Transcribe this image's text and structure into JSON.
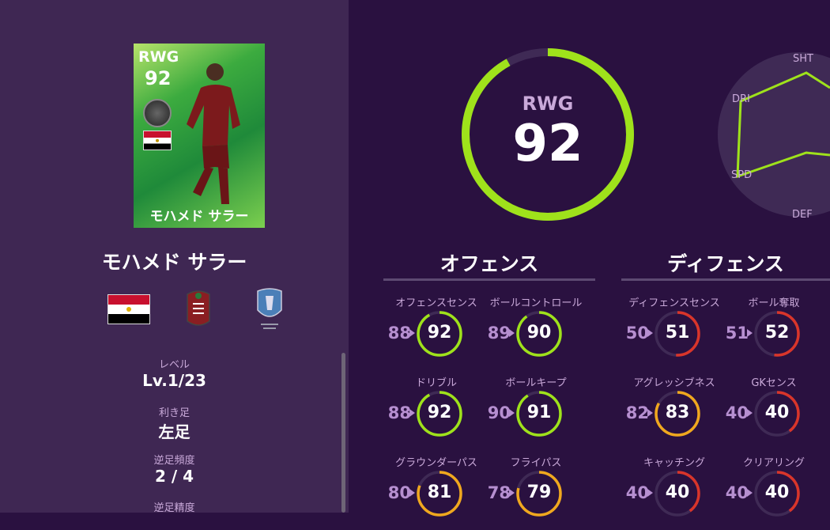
{
  "player": {
    "position": "RWG",
    "overall": 92,
    "name": "モハメド サラー",
    "card_name": "モハメド サラー"
  },
  "info": [
    {
      "label": "レベル",
      "value": "Lv.1/23"
    },
    {
      "label": "利き足",
      "value": "左足"
    },
    {
      "label": "逆足頻度",
      "value": "2 / 4"
    },
    {
      "label": "逆足精度",
      "value": ""
    }
  ],
  "radar": {
    "labels": [
      "SHT",
      "DRI",
      "SPD",
      "DEF"
    ]
  },
  "colors": {
    "high": "#9fe21b",
    "mid": "#f0a81e",
    "low": "#d9352a",
    "track": "#3f2a55"
  },
  "sections": {
    "offense": "オフェンス",
    "defense": "ディフェンス"
  },
  "stats": [
    {
      "label": "オフェンスセンス",
      "prev": 88,
      "value": 92
    },
    {
      "label": "ボールコントロール",
      "prev": 89,
      "value": 90
    },
    {
      "label": "ドリブル",
      "prev": 88,
      "value": 92
    },
    {
      "label": "ボールキープ",
      "prev": 90,
      "value": 91
    },
    {
      "label": "グラウンダーパス",
      "prev": 80,
      "value": 81
    },
    {
      "label": "フライパス",
      "prev": 78,
      "value": 79
    },
    {
      "label": "ディフェンスセンス",
      "prev": 50,
      "value": 51
    },
    {
      "label": "ボール奪取",
      "prev": 51,
      "value": 52
    },
    {
      "label": "アグレッシブネス",
      "prev": 82,
      "value": 83
    },
    {
      "label": "GKセンス",
      "prev": 40,
      "value": 40
    },
    {
      "label": "キャッチング",
      "prev": 40,
      "value": 40
    },
    {
      "label": "クリアリング",
      "prev": 40,
      "value": 40
    }
  ]
}
